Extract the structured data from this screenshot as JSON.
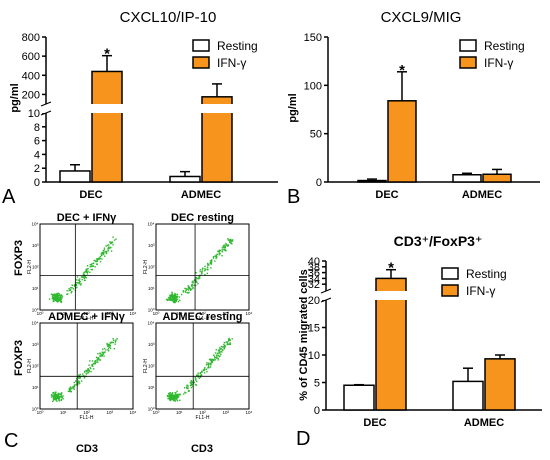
{
  "colors": {
    "resting": "#ffffff",
    "ifng": "#f7941d",
    "dots": "#2eb82e",
    "axis": "#000000"
  },
  "legend": {
    "resting": "Resting",
    "ifng": "IFN-γ"
  },
  "significance": "*",
  "panel_letters": [
    "A",
    "B",
    "C",
    "D"
  ],
  "chart_data": [
    {
      "id": "A",
      "type": "bar",
      "title": "CXCL10/IP-10",
      "ylabel": "pg/ml",
      "categories": [
        "DEC",
        "ADMEC"
      ],
      "broken_axis": {
        "lower_range": [
          0,
          10
        ],
        "upper_range": [
          100,
          800
        ]
      },
      "yticks_lower": [
        "0",
        "2",
        "4",
        "6",
        "8",
        "10"
      ],
      "yticks_upper": [
        "200",
        "400",
        "600",
        "800"
      ],
      "series": [
        {
          "name": "Resting",
          "values": [
            1.6,
            0.8
          ],
          "errors": [
            0.9,
            0.7
          ]
        },
        {
          "name": "IFN-γ",
          "values": [
            440,
            175
          ],
          "errors": [
            165,
            135
          ]
        }
      ],
      "significant": [
        "DEC"
      ],
      "legend_position": "top-right"
    },
    {
      "id": "B",
      "type": "bar",
      "title": "CXCL9/MIG",
      "ylabel": "pg/ml",
      "categories": [
        "DEC",
        "ADMEC"
      ],
      "ylim": [
        0,
        150
      ],
      "yticks": [
        "0",
        "50",
        "100",
        "150"
      ],
      "series": [
        {
          "name": "Resting",
          "values": [
            1.5,
            7.5
          ],
          "errors": [
            1.5,
            1.5
          ]
        },
        {
          "name": "IFN-γ",
          "values": [
            84,
            8
          ],
          "errors": [
            30,
            5
          ]
        }
      ],
      "significant": [
        "DEC"
      ],
      "legend_position": "top-right"
    },
    {
      "id": "C",
      "type": "scatter",
      "title": "",
      "plots": [
        {
          "label": "DEC + IFNγ"
        },
        {
          "label": "DEC resting"
        },
        {
          "label": "ADMEC + IFNγ"
        },
        {
          "label": "ADMEC resting"
        }
      ],
      "ylabel": "FOXP3",
      "xlabel": "CD3",
      "inner_ylabel": "FL2-H",
      "inner_xlabel": "FL1-H",
      "ticks": [
        "10⁰",
        "10¹",
        "10²",
        "10³",
        "10⁴"
      ]
    },
    {
      "id": "D",
      "type": "bar",
      "title": "CD3⁺/FoxP3⁺",
      "ylabel": "% of CD45 migrated cells",
      "categories": [
        "DEC",
        "ADMEC"
      ],
      "broken_axis": {
        "lower_range": [
          0,
          20
        ],
        "upper_range": [
          30,
          40
        ]
      },
      "yticks_lower": [
        "0",
        "5",
        "10",
        "15",
        "20"
      ],
      "yticks_upper": [
        "32",
        "34",
        "36",
        "38",
        "40"
      ],
      "series": [
        {
          "name": "Resting",
          "values": [
            4.5,
            5.2
          ],
          "errors": [
            0.1,
            2.4
          ]
        },
        {
          "name": "IFN-γ",
          "values": [
            34,
            9.3
          ],
          "errors": [
            3,
            0.7
          ]
        }
      ],
      "significant": [
        "DEC"
      ],
      "legend_position": "top-right"
    }
  ]
}
